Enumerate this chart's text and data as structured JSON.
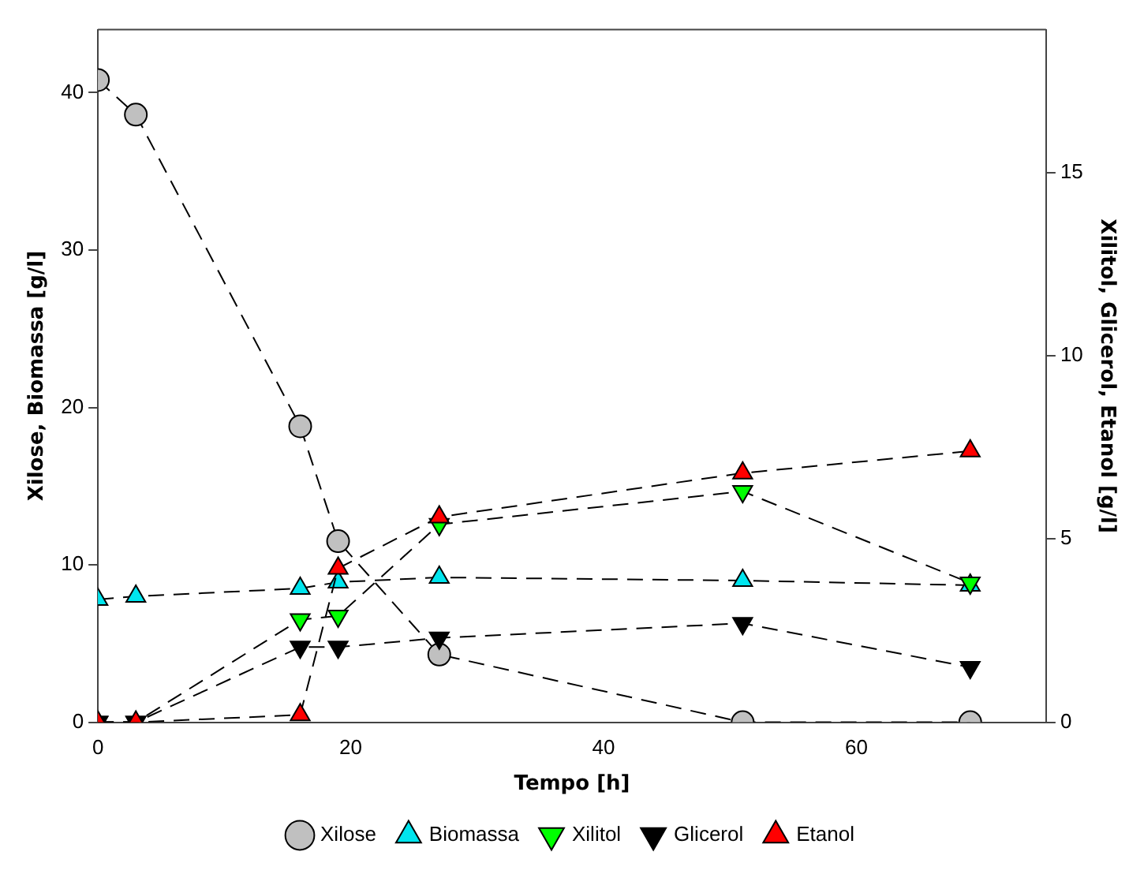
{
  "chart_data": {
    "type": "line",
    "xlabel": "Tempo [h]",
    "ylabel": "Xilose, Biomassa [g/l]",
    "y2label": "Xilitol, Glicerol, Etanol [g/l]",
    "x": [
      0,
      3,
      16,
      19,
      27,
      51,
      69
    ],
    "xlim": [
      0,
      75
    ],
    "xticks": [
      0,
      20,
      40,
      60
    ],
    "ylim": [
      0,
      44
    ],
    "yticks": [
      0,
      10,
      20,
      30,
      40
    ],
    "y2lim": [
      0,
      18.9
    ],
    "y2ticks": [
      0,
      5,
      10,
      15
    ],
    "legend": "bottom",
    "line_style": "dashed",
    "grid": false,
    "series": [
      {
        "name": "Xilose",
        "color": "#c0c0c0",
        "marker": "circle",
        "values": [
          40.8,
          38.6,
          18.8,
          11.5,
          4.3,
          0,
          0
        ]
      },
      {
        "name": "Biomassa",
        "color": "#00e5ee",
        "marker": "triangle",
        "values": [
          7.8,
          8.0,
          8.5,
          8.9,
          9.2,
          9.0,
          8.7
        ]
      },
      {
        "name": "Xilitol",
        "color": "#00ff00",
        "marker": "triangle-down",
        "axis": "y2",
        "values": [
          0,
          0,
          2.8,
          2.9,
          5.4,
          6.3,
          3.8
        ]
      },
      {
        "name": "Glicerol",
        "color": "#000000",
        "marker": "triangle-down",
        "axis": "y2",
        "values": [
          0,
          0,
          2.05,
          2.05,
          2.3,
          2.7,
          1.5
        ]
      },
      {
        "name": "Etanol",
        "color": "#ff0000",
        "marker": "triangle",
        "axis": "y2",
        "values": [
          0,
          0,
          0.2,
          4.2,
          5.6,
          6.8,
          7.4
        ]
      }
    ]
  }
}
